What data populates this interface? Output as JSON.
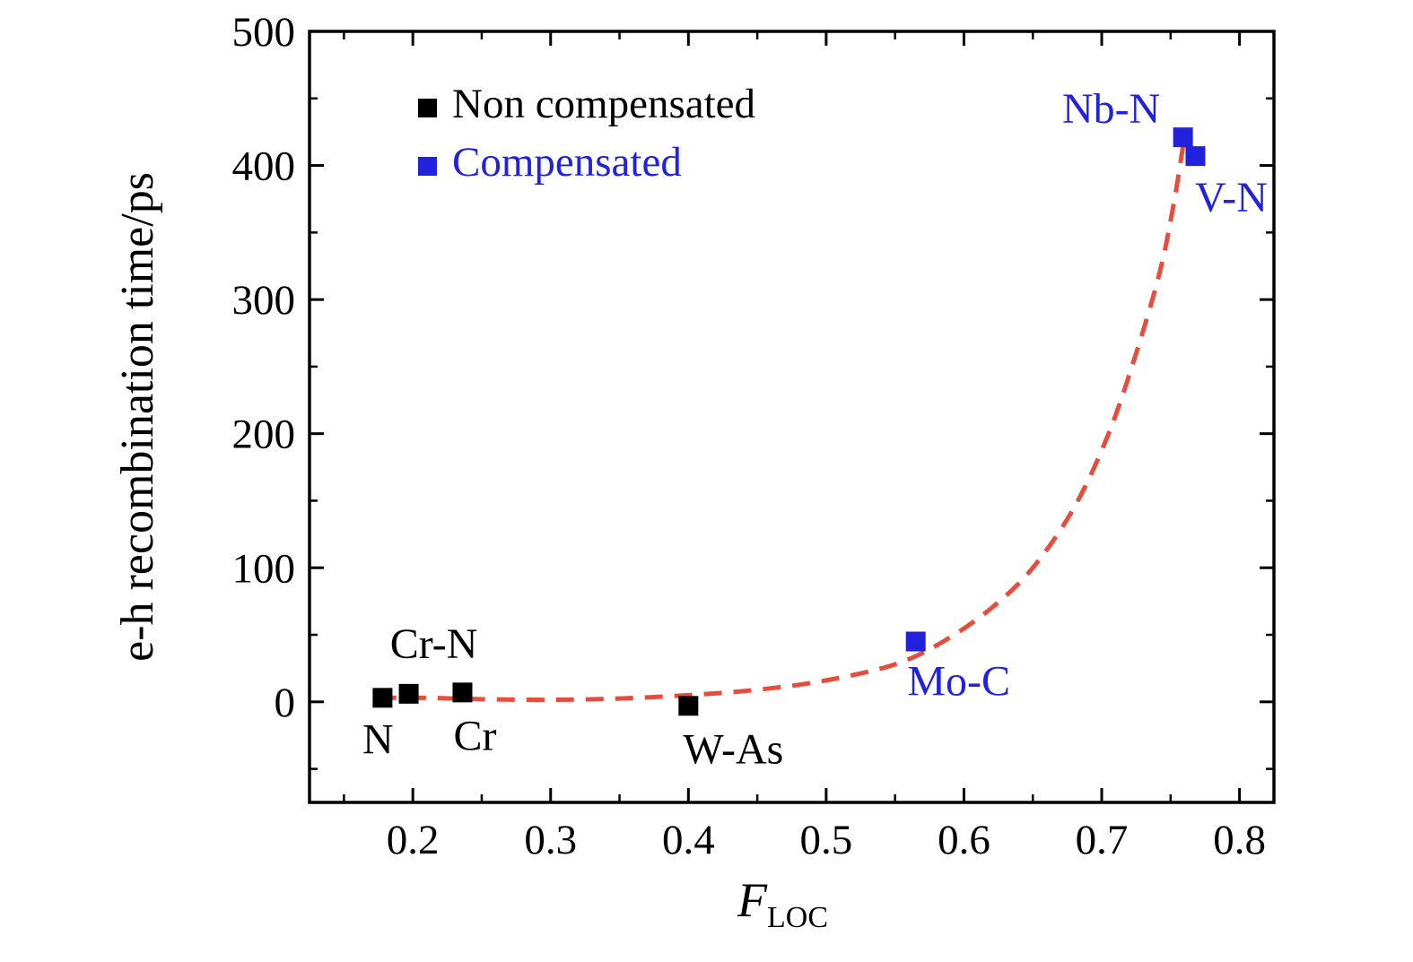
{
  "chart_data": {
    "type": "scatter",
    "title": "",
    "xlabel_main": "F",
    "xlabel_sub": "LOC",
    "ylabel": "e-h recombination time/ps",
    "xlim": [
      0.125,
      0.825
    ],
    "ylim": [
      -75,
      500
    ],
    "grid": false,
    "legend_position": "top-left-inside",
    "x_major_ticks": [
      0.2,
      0.3,
      0.4,
      0.5,
      0.6,
      0.7,
      0.8
    ],
    "x_tick_labels": [
      "0.2",
      "0.3",
      "0.4",
      "0.5",
      "0.6",
      "0.7",
      "0.8"
    ],
    "x_minor_ticks": [
      0.15,
      0.25,
      0.35,
      0.45,
      0.55,
      0.65,
      0.75
    ],
    "y_major_ticks": [
      0,
      100,
      200,
      300,
      400,
      500
    ],
    "y_tick_labels": [
      "0",
      "100",
      "200",
      "300",
      "400",
      "500"
    ],
    "y_minor_ticks": [
      -50,
      50,
      150,
      250,
      350,
      450
    ],
    "colors": {
      "non_compensated": "#000000",
      "compensated": "#2222dd",
      "fit_curve": "#e94c3d",
      "axis": "#000000"
    },
    "legend": [
      {
        "label": "Non compensated",
        "color": "#000000"
      },
      {
        "label": "Compensated",
        "color": "#2222dd"
      }
    ],
    "series": [
      {
        "name": "Non compensated",
        "color": "#000000",
        "marker": "square",
        "points": [
          {
            "label": "N",
            "x": 0.178,
            "y": 3,
            "label_dx": -5,
            "label_dy": 62
          },
          {
            "label": "Cr-N",
            "x": 0.197,
            "y": 6,
            "label_dx": 28,
            "label_dy": -40
          },
          {
            "label": "Cr",
            "x": 0.236,
            "y": 7,
            "label_dx": 14,
            "label_dy": 64
          },
          {
            "label": "W-As",
            "x": 0.4,
            "y": -3,
            "label_dx": 50,
            "label_dy": 64
          }
        ]
      },
      {
        "name": "Compensated",
        "color": "#2222dd",
        "marker": "square",
        "points": [
          {
            "label": "Mo-C",
            "x": 0.565,
            "y": 45,
            "label_dx": 48,
            "label_dy": 60
          },
          {
            "label": "Nb-N",
            "x": 0.759,
            "y": 421,
            "label_dx": -80,
            "label_dy": -16
          },
          {
            "label": "V-N",
            "x": 0.768,
            "y": 407,
            "label_dx": 40,
            "label_dy": 62
          }
        ]
      }
    ],
    "fit_curve": {
      "color": "#e94c3d",
      "style": "dashed",
      "points": [
        [
          0.175,
          3
        ],
        [
          0.21,
          3
        ],
        [
          0.25,
          2
        ],
        [
          0.3,
          1.5
        ],
        [
          0.35,
          2.5
        ],
        [
          0.4,
          5
        ],
        [
          0.45,
          9
        ],
        [
          0.5,
          16
        ],
        [
          0.55,
          28
        ],
        [
          0.585,
          45
        ],
        [
          0.62,
          70
        ],
        [
          0.65,
          100
        ],
        [
          0.68,
          145
        ],
        [
          0.705,
          200
        ],
        [
          0.725,
          260
        ],
        [
          0.742,
          320
        ],
        [
          0.752,
          370
        ],
        [
          0.76,
          421
        ]
      ]
    }
  }
}
